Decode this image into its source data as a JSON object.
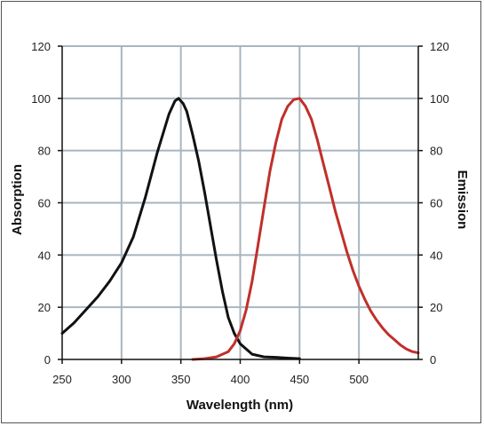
{
  "chart_data": {
    "type": "line",
    "xlabel": "Wavelength (nm)",
    "ylabel_left": "Absorption",
    "ylabel_right": "Emission",
    "xlim": [
      250,
      550
    ],
    "ylim": [
      0,
      120
    ],
    "x_ticks": [
      "250",
      "300",
      "350",
      "400",
      "450",
      "500"
    ],
    "y_ticks": [
      "0",
      "20",
      "40",
      "60",
      "80",
      "100",
      "120"
    ],
    "grid": true,
    "series": [
      {
        "color": "#111111",
        "axis": "left",
        "points": [
          [
            250,
            10
          ],
          [
            260,
            14
          ],
          [
            270,
            19
          ],
          [
            280,
            24
          ],
          [
            290,
            30
          ],
          [
            300,
            37
          ],
          [
            310,
            47
          ],
          [
            320,
            62
          ],
          [
            330,
            79
          ],
          [
            340,
            94
          ],
          [
            345,
            99
          ],
          [
            348,
            100
          ],
          [
            352,
            98
          ],
          [
            355,
            95
          ],
          [
            360,
            86
          ],
          [
            365,
            76
          ],
          [
            370,
            64
          ],
          [
            375,
            51
          ],
          [
            380,
            38
          ],
          [
            385,
            26
          ],
          [
            390,
            16
          ],
          [
            395,
            10
          ],
          [
            400,
            6
          ],
          [
            405,
            4
          ],
          [
            410,
            2
          ],
          [
            415,
            1.5
          ],
          [
            420,
            1
          ],
          [
            430,
            0.8
          ],
          [
            440,
            0.5
          ],
          [
            450,
            0.3
          ]
        ]
      },
      {
        "color": "#c0302a",
        "axis": "right",
        "points": [
          [
            360,
            0
          ],
          [
            370,
            0.3
          ],
          [
            380,
            1
          ],
          [
            390,
            3
          ],
          [
            395,
            6
          ],
          [
            400,
            11
          ],
          [
            405,
            19
          ],
          [
            410,
            30
          ],
          [
            415,
            44
          ],
          [
            420,
            58
          ],
          [
            425,
            72
          ],
          [
            430,
            83
          ],
          [
            435,
            92
          ],
          [
            440,
            97
          ],
          [
            445,
            99.5
          ],
          [
            450,
            100
          ],
          [
            455,
            97
          ],
          [
            460,
            92
          ],
          [
            465,
            84
          ],
          [
            470,
            75
          ],
          [
            475,
            66
          ],
          [
            480,
            57
          ],
          [
            485,
            49
          ],
          [
            490,
            41
          ],
          [
            495,
            34
          ],
          [
            500,
            28
          ],
          [
            505,
            23
          ],
          [
            510,
            18.5
          ],
          [
            515,
            15
          ],
          [
            520,
            12
          ],
          [
            525,
            9.5
          ],
          [
            530,
            7.5
          ],
          [
            535,
            5.5
          ],
          [
            540,
            4
          ],
          [
            545,
            3
          ],
          [
            550,
            2.5
          ]
        ]
      }
    ]
  }
}
